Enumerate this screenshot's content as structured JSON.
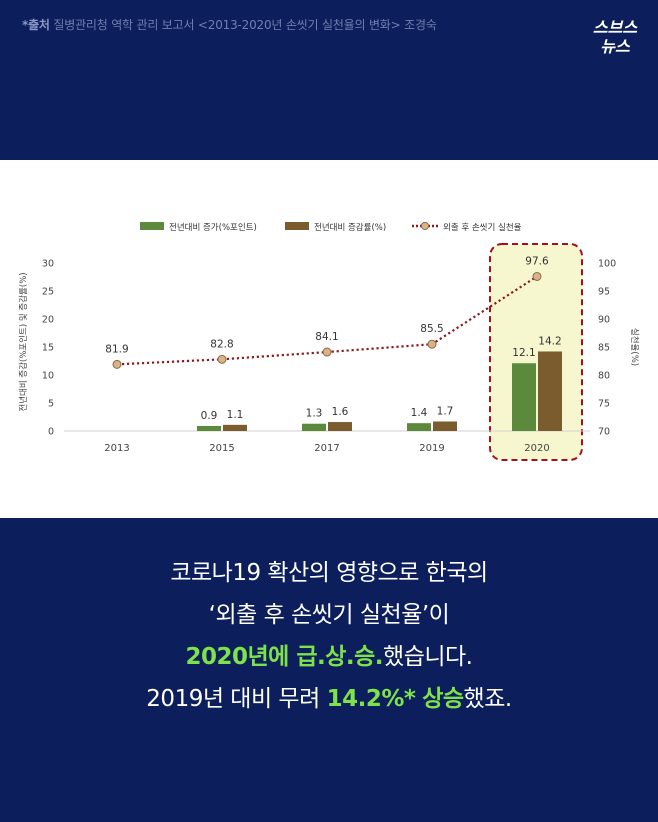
{
  "source": {
    "label": "*출처",
    "text": "질병관리청 역학 관리 보고서 <2013-2020년 손씻기 실천율의 변화> 조경숙"
  },
  "logo": {
    "line1": "스브스",
    "line2": "뉴스"
  },
  "chart_data": {
    "type": "bar+line",
    "categories": [
      "2013",
      "2015",
      "2017",
      "2019",
      "2020"
    ],
    "series": [
      {
        "name": "전년대비 증가(%포인트)",
        "type": "bar",
        "axis": "left",
        "color": "#5b8a3c",
        "values": [
          null,
          0.9,
          1.3,
          1.4,
          12.1
        ],
        "labels": [
          "",
          "0.9",
          "1.3",
          "1.4",
          "12.1"
        ]
      },
      {
        "name": "전년대비 증감률(%)",
        "type": "bar",
        "axis": "left",
        "color": "#7a5c2e",
        "values": [
          null,
          1.1,
          1.6,
          1.7,
          14.2
        ],
        "labels": [
          "",
          "1.1",
          "1.6",
          "1.7",
          "14.2"
        ]
      },
      {
        "name": "외출 후 손씻기 실천율",
        "type": "line",
        "axis": "right",
        "color": "#8b1a1a",
        "values": [
          81.9,
          82.8,
          84.1,
          85.5,
          97.6
        ],
        "labels": [
          "81.9",
          "82.8",
          "84.1",
          "85.5",
          "97.6"
        ]
      }
    ],
    "y_left": {
      "label": "전년대비 증감(%포인트) 및 증감률(%)",
      "range": [
        0,
        30
      ],
      "ticks": [
        "0",
        "5",
        "10",
        "15",
        "20",
        "25",
        "30"
      ]
    },
    "y_right": {
      "label": "실천율(%)",
      "range": [
        70,
        100
      ],
      "ticks": [
        "70",
        "75",
        "80",
        "85",
        "90",
        "95",
        "100"
      ]
    },
    "highlight": "2020",
    "legend_position": "top"
  },
  "caption": {
    "line1": "코로나19 확산의 영향으로 한국의",
    "line2": "‘외출 후 손씻기 실천율’이",
    "line3_hl": "2020년에 급.상.승.",
    "line3_rest": "했습니다.",
    "line4_pre": "2019년 대비 무려 ",
    "line4_hl1": "14.2%*",
    "line4_hl2": "상승",
    "line4_post": "했죠."
  }
}
